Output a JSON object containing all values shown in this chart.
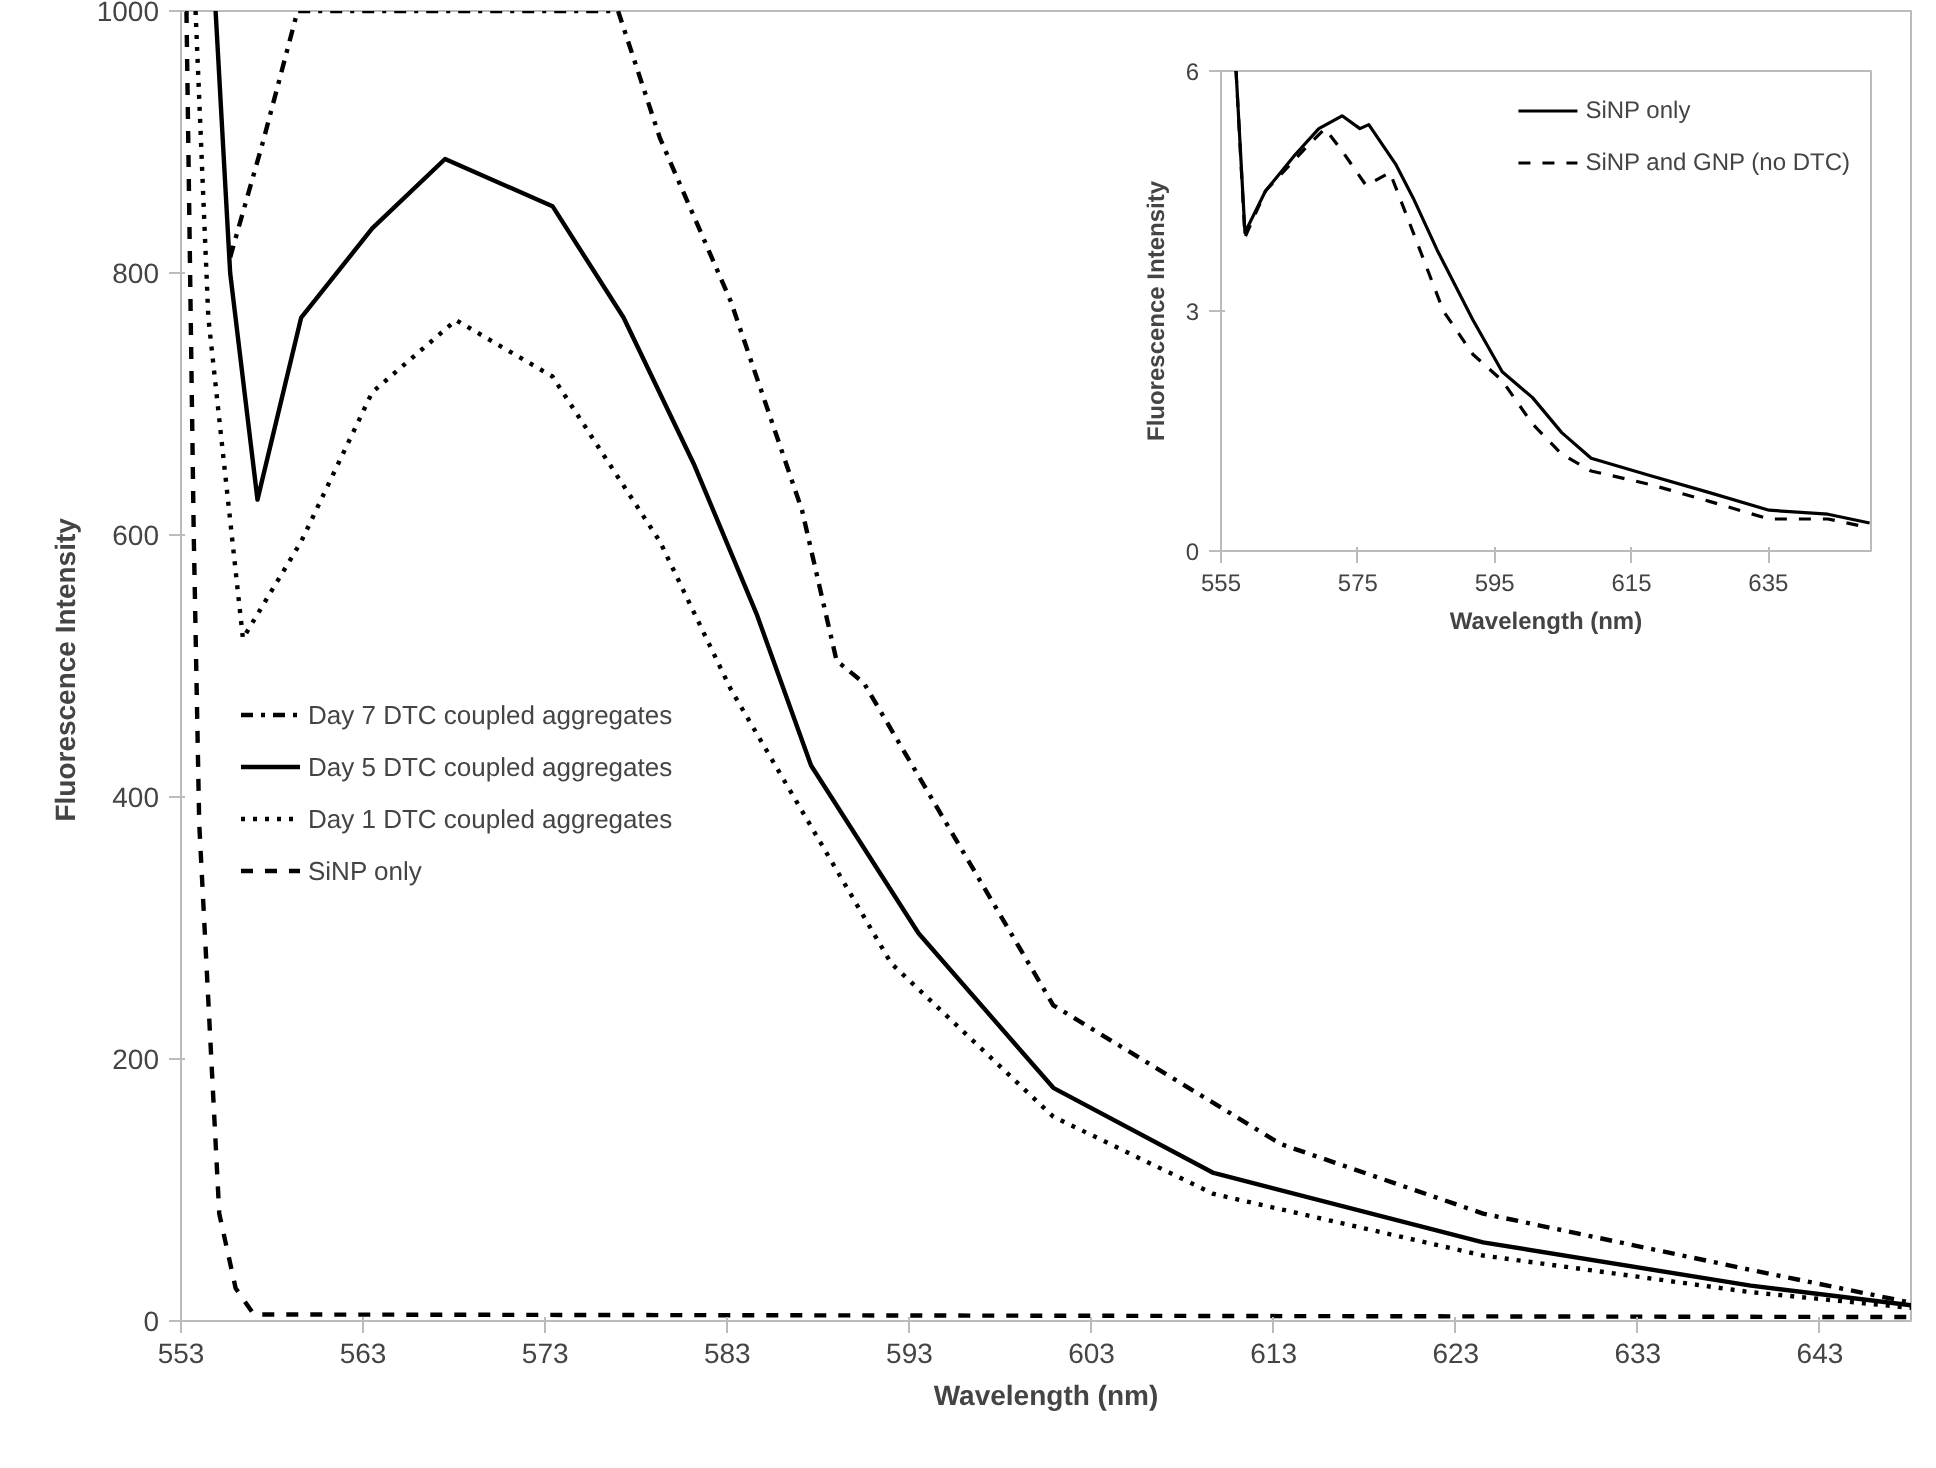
{
  "chart_data": [
    {
      "type": "line",
      "xlabel": "Wavelength (nm)",
      "ylabel": "Fluorescence  Intensity",
      "xlim": [
        553,
        648
      ],
      "ylim": [
        0,
        1000
      ],
      "xticks": [
        553,
        563,
        573,
        583,
        593,
        603,
        613,
        623,
        633,
        643
      ],
      "yticks": [
        0,
        200,
        400,
        600,
        800,
        1000
      ],
      "grid": false,
      "legend": "left",
      "series": [
        {
          "name": "Day 7 DTC coupled aggregates",
          "color": "#000000",
          "line_style": "dashdot",
          "x": [
            555.7,
            557.5,
            559.4,
            577,
            579.3,
            583.2,
            587.1,
            589,
            590.5,
            600.9,
            613.4,
            624.5,
            639.2,
            648
          ],
          "values": [
            812,
            900,
            1000,
            1000,
            903,
            778,
            619,
            504,
            487,
            241,
            135,
            82,
            39,
            14
          ]
        },
        {
          "name": "Day 5 DTC coupled aggregates",
          "color": "#000000",
          "line_style": "solid",
          "x": [
            554.9,
            555.7,
            557.2,
            559.6,
            563.5,
            567.5,
            573.4,
            577.3,
            581.2,
            584.6,
            587.6,
            593.5,
            600.9,
            609.7,
            624.5,
            639.2,
            648
          ],
          "values": [
            1000,
            800,
            627,
            766,
            834,
            887,
            851,
            766,
            653,
            540,
            424,
            296,
            178,
            113,
            60,
            27,
            12
          ]
        },
        {
          "name": "Day 1 DTC coupled aggregates",
          "color": "#000000",
          "line_style": "dotted",
          "x": [
            553.8,
            554.5,
            556.4,
            559.6,
            563.5,
            568.1,
            573.4,
            579.3,
            583.2,
            592,
            600.9,
            609.7,
            624.5,
            639.2,
            648
          ],
          "values": [
            1000,
            766,
            521,
            595,
            709,
            764,
            721,
            595,
            482,
            273,
            156,
            97,
            50,
            22,
            10
          ]
        },
        {
          "name": "SiNP only",
          "color": "#000000",
          "line_style": "dashed",
          "x": [
            553.3,
            553.7,
            554.0,
            555.1,
            556,
            557,
            648
          ],
          "values": [
            1000,
            600,
            380,
            82,
            25,
            5,
            3
          ]
        }
      ]
    },
    {
      "type": "line",
      "xlabel": "Wavelength (nm)",
      "ylabel": "Fluorescence Intensity",
      "xlim": [
        555,
        650
      ],
      "ylim": [
        0,
        6
      ],
      "xticks": [
        555,
        575,
        595,
        615,
        635
      ],
      "yticks": [
        0,
        3,
        6
      ],
      "grid": false,
      "legend": "top right",
      "series": [
        {
          "name": "SiNP only",
          "color": "#000000",
          "line_style": "solid",
          "x": [
            557.2,
            558.5,
            561.5,
            565.8,
            569.3,
            572.7,
            575.3,
            576.6,
            580.5,
            583.1,
            586.6,
            591.8,
            596.1,
            600.5,
            604.8,
            609.1,
            617.8,
            626.4,
            635.1,
            643.7,
            649.8
          ],
          "values": [
            6,
            3.98,
            4.5,
            4.95,
            5.28,
            5.44,
            5.28,
            5.33,
            4.84,
            4.41,
            3.76,
            2.89,
            2.24,
            1.92,
            1.48,
            1.16,
            0.94,
            0.73,
            0.51,
            0.46,
            0.35
          ]
        },
        {
          "name": "SiNP and GNP (no DTC)",
          "color": "#000000",
          "line_style": "dashed",
          "x": [
            557.2,
            558.5,
            561.5,
            567.6,
            570.2,
            572.7,
            576.2,
            579.7,
            583.1,
            587.5,
            591.8,
            596.1,
            600.5,
            604.8,
            609.1,
            617.8,
            626.4,
            635.1,
            643.7,
            649.8
          ],
          "values": [
            6,
            3.92,
            4.5,
            5.06,
            5.28,
            5.0,
            4.57,
            4.73,
            3.98,
            3.0,
            2.46,
            2.13,
            1.59,
            1.21,
            1.0,
            0.83,
            0.62,
            0.4,
            0.4,
            0.29
          ]
        }
      ]
    }
  ]
}
